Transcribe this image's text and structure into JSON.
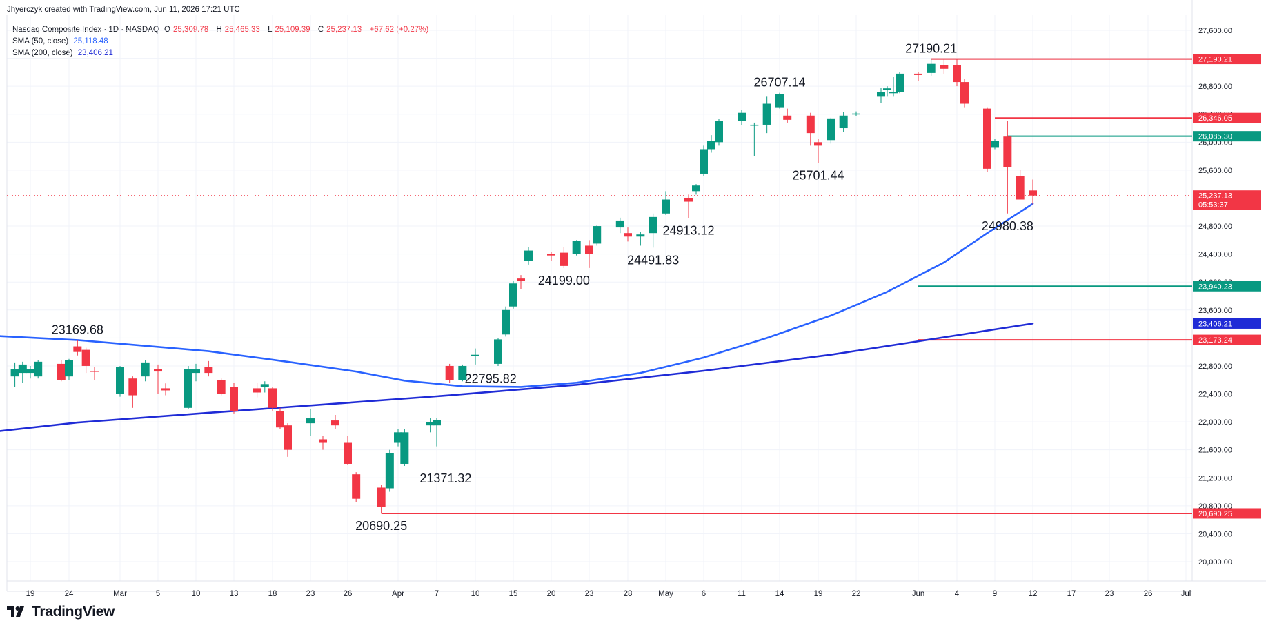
{
  "header": {
    "attribution": "Jhyerczyk created with TradingView.com, Jun 11, 2026 17:21 UTC"
  },
  "legend": {
    "symbol": "Nasdaq Composite Index · 1D · NASDAQ",
    "ohlc": [
      {
        "key": "O",
        "value": "25,309.78"
      },
      {
        "key": "H",
        "value": "25,465.33"
      },
      {
        "key": "L",
        "value": "25,109.39"
      },
      {
        "key": "C",
        "value": "25,237.13"
      }
    ],
    "change": "+67.62 (+0.27%)",
    "sma50_label": "SMA (50, close)",
    "sma50_value": "25,118.48",
    "sma200_label": "SMA (200, close)",
    "sma200_value": "23,406.21"
  },
  "footer": {
    "brand": "TradingView"
  },
  "colors": {
    "up": "#089981",
    "down": "#f23645",
    "sma50": "#2962ff",
    "sma200": "#1f2bd6",
    "resistance": "#f23645",
    "support": "#089981",
    "grid": "#f0f3fa"
  },
  "chart_data": {
    "type": "candlestick",
    "ylim": [
      19800,
      27900
    ],
    "y_ticks": [
      20000,
      20400,
      20800,
      21200,
      21600,
      22000,
      22400,
      22800,
      23200,
      23600,
      24000,
      24400,
      24800,
      25200,
      25600,
      26000,
      26400,
      26800,
      27200,
      27600
    ],
    "y_tick_labels": [
      "20,000.00",
      "20,400.00",
      "20,800.00",
      "21,200.00",
      "21,600.00",
      "22,000.00",
      "22,400.00",
      "22,800.00",
      "23,200.00",
      "23,600.00",
      "24,000.00",
      "24,400.00",
      "24,800.00",
      "25,200.00",
      "25,600.00",
      "26,000.00",
      "26,400.00",
      "26,800.00",
      "27,200.00",
      "27,600.00"
    ],
    "x_ticks": [
      {
        "label": "19",
        "date": "2026-02-19"
      },
      {
        "label": "24",
        "date": "2026-02-24"
      },
      {
        "label": "Mar",
        "date": "2026-03-02"
      },
      {
        "label": "5",
        "date": "2026-03-05"
      },
      {
        "label": "10",
        "date": "2026-03-10"
      },
      {
        "label": "13",
        "date": "2026-03-13"
      },
      {
        "label": "18",
        "date": "2026-03-18"
      },
      {
        "label": "23",
        "date": "2026-03-23"
      },
      {
        "label": "26",
        "date": "2026-03-26"
      },
      {
        "label": "Apr",
        "date": "2026-04-01"
      },
      {
        "label": "7",
        "date": "2026-04-07"
      },
      {
        "label": "10",
        "date": "2026-04-10"
      },
      {
        "label": "15",
        "date": "2026-04-15"
      },
      {
        "label": "20",
        "date": "2026-04-20"
      },
      {
        "label": "23",
        "date": "2026-04-23"
      },
      {
        "label": "28",
        "date": "2026-04-28"
      },
      {
        "label": "May",
        "date": "2026-05-01"
      },
      {
        "label": "6",
        "date": "2026-05-06"
      },
      {
        "label": "11",
        "date": "2026-05-11"
      },
      {
        "label": "14",
        "date": "2026-05-14"
      },
      {
        "label": "19",
        "date": "2026-05-19"
      },
      {
        "label": "22",
        "date": "2026-05-22"
      },
      {
        "label": "Jun",
        "date": "2026-06-01"
      },
      {
        "label": "4",
        "date": "2026-06-04"
      },
      {
        "label": "9",
        "date": "2026-06-09"
      },
      {
        "label": "12",
        "date": "2026-06-12"
      },
      {
        "label": "17",
        "date": "2026-06-17"
      },
      {
        "label": "23",
        "date": "2026-06-23"
      },
      {
        "label": "26",
        "date": "2026-06-26"
      },
      {
        "label": "Jul",
        "date": "2026-07-01"
      }
    ],
    "candles": [
      {
        "d": "2026-02-17",
        "o": 22650,
        "h": 22850,
        "l": 22500,
        "c": 22750
      },
      {
        "d": "2026-02-18",
        "o": 22700,
        "h": 22860,
        "l": 22560,
        "c": 22820
      },
      {
        "d": "2026-02-19",
        "o": 22700,
        "h": 22800,
        "l": 22620,
        "c": 22750
      },
      {
        "d": "2026-02-20",
        "o": 22650,
        "h": 22880,
        "l": 22620,
        "c": 22860
      },
      {
        "d": "2026-02-23",
        "o": 22830,
        "h": 22880,
        "l": 22580,
        "c": 22600
      },
      {
        "d": "2026-02-24",
        "o": 22650,
        "h": 22900,
        "l": 22600,
        "c": 22880
      },
      {
        "d": "2026-02-25",
        "o": 23080,
        "h": 23170,
        "l": 22950,
        "c": 23000
      },
      {
        "d": "2026-02-26",
        "o": 23030,
        "h": 23060,
        "l": 22700,
        "c": 22800
      },
      {
        "d": "2026-02-27",
        "o": 22730,
        "h": 22780,
        "l": 22600,
        "c": 22720
      },
      {
        "d": "2026-03-02",
        "o": 22400,
        "h": 22800,
        "l": 22360,
        "c": 22780
      },
      {
        "d": "2026-03-03",
        "o": 22620,
        "h": 22650,
        "l": 22200,
        "c": 22380
      },
      {
        "d": "2026-03-04",
        "o": 22650,
        "h": 22880,
        "l": 22580,
        "c": 22850
      },
      {
        "d": "2026-03-05",
        "o": 22760,
        "h": 22820,
        "l": 22400,
        "c": 22720
      },
      {
        "d": "2026-03-06",
        "o": 22480,
        "h": 22550,
        "l": 22380,
        "c": 22450
      },
      {
        "d": "2026-03-09",
        "o": 22200,
        "h": 22800,
        "l": 22180,
        "c": 22760
      },
      {
        "d": "2026-03-10",
        "o": 22700,
        "h": 22830,
        "l": 22580,
        "c": 22750
      },
      {
        "d": "2026-03-11",
        "o": 22780,
        "h": 22870,
        "l": 22650,
        "c": 22700
      },
      {
        "d": "2026-03-12",
        "o": 22600,
        "h": 22620,
        "l": 22380,
        "c": 22400
      },
      {
        "d": "2026-03-13",
        "o": 22500,
        "h": 22560,
        "l": 22120,
        "c": 22150
      },
      {
        "d": "2026-03-16",
        "o": 22480,
        "h": 22560,
        "l": 22350,
        "c": 22420
      },
      {
        "d": "2026-03-17",
        "o": 22500,
        "h": 22580,
        "l": 22420,
        "c": 22540
      },
      {
        "d": "2026-03-18",
        "o": 22480,
        "h": 22500,
        "l": 22160,
        "c": 22200
      },
      {
        "d": "2026-03-19",
        "o": 22150,
        "h": 22200,
        "l": 21900,
        "c": 21920
      },
      {
        "d": "2026-03-20",
        "o": 21950,
        "h": 21980,
        "l": 21500,
        "c": 21600
      },
      {
        "d": "2026-03-23",
        "o": 21980,
        "h": 22180,
        "l": 21800,
        "c": 22050
      },
      {
        "d": "2026-03-24",
        "o": 21750,
        "h": 21800,
        "l": 21600,
        "c": 21700
      },
      {
        "d": "2026-03-25",
        "o": 22020,
        "h": 22100,
        "l": 21900,
        "c": 21950
      },
      {
        "d": "2026-03-26",
        "o": 21700,
        "h": 21800,
        "l": 21380,
        "c": 21400
      },
      {
        "d": "2026-03-27",
        "o": 21250,
        "h": 21280,
        "l": 20850,
        "c": 20900
      },
      {
        "d": "2026-03-30",
        "o": 21060,
        "h": 21100,
        "l": 20700,
        "c": 20780
      },
      {
        "d": "2026-03-31",
        "o": 21050,
        "h": 21600,
        "l": 21000,
        "c": 21550
      },
      {
        "d": "2026-04-01",
        "o": 21700,
        "h": 21900,
        "l": 21650,
        "c": 21850
      },
      {
        "d": "2026-04-02",
        "o": 21400,
        "h": 21900,
        "l": 21370,
        "c": 21850
      },
      {
        "d": "2026-04-06",
        "o": 21950,
        "h": 22050,
        "l": 21850,
        "c": 22000
      },
      {
        "d": "2026-04-07",
        "o": 21950,
        "h": 22050,
        "l": 21650,
        "c": 22030
      },
      {
        "d": "2026-04-08",
        "o": 22800,
        "h": 22830,
        "l": 22560,
        "c": 22600
      },
      {
        "d": "2026-04-09",
        "o": 22600,
        "h": 22820,
        "l": 22580,
        "c": 22800
      },
      {
        "d": "2026-04-10",
        "o": 22950,
        "h": 23050,
        "l": 22820,
        "c": 22960
      },
      {
        "d": "2026-04-13",
        "o": 22830,
        "h": 23200,
        "l": 22800,
        "c": 23180
      },
      {
        "d": "2026-04-14",
        "o": 23250,
        "h": 23650,
        "l": 23220,
        "c": 23600
      },
      {
        "d": "2026-04-15",
        "o": 23650,
        "h": 24020,
        "l": 23620,
        "c": 23980
      },
      {
        "d": "2026-04-16",
        "o": 24050,
        "h": 24100,
        "l": 23900,
        "c": 24020
      },
      {
        "d": "2026-04-17",
        "o": 24300,
        "h": 24500,
        "l": 24250,
        "c": 24450
      },
      {
        "d": "2026-04-20",
        "o": 24400,
        "h": 24430,
        "l": 24300,
        "c": 24380
      },
      {
        "d": "2026-04-21",
        "o": 24420,
        "h": 24500,
        "l": 24199,
        "c": 24230
      },
      {
        "d": "2026-04-22",
        "o": 24400,
        "h": 24600,
        "l": 24380,
        "c": 24590
      },
      {
        "d": "2026-04-23",
        "o": 24520,
        "h": 24600,
        "l": 24200,
        "c": 24400
      },
      {
        "d": "2026-04-24",
        "o": 24550,
        "h": 24820,
        "l": 24520,
        "c": 24800
      },
      {
        "d": "2026-04-27",
        "o": 24780,
        "h": 24920,
        "l": 24700,
        "c": 24880
      },
      {
        "d": "2026-04-28",
        "o": 24700,
        "h": 24780,
        "l": 24580,
        "c": 24650
      },
      {
        "d": "2026-04-29",
        "o": 24650,
        "h": 24720,
        "l": 24520,
        "c": 24680
      },
      {
        "d": "2026-04-30",
        "o": 24700,
        "h": 24980,
        "l": 24492,
        "c": 24930
      },
      {
        "d": "2026-05-01",
        "o": 24980,
        "h": 25300,
        "l": 24960,
        "c": 25180
      },
      {
        "d": "2026-05-04",
        "o": 25200,
        "h": 25250,
        "l": 24913,
        "c": 25150
      },
      {
        "d": "2026-05-05",
        "o": 25300,
        "h": 25400,
        "l": 25250,
        "c": 25380
      },
      {
        "d": "2026-05-06",
        "o": 25550,
        "h": 25950,
        "l": 25520,
        "c": 25900
      },
      {
        "d": "2026-05-07",
        "o": 25900,
        "h": 26100,
        "l": 25850,
        "c": 26020
      },
      {
        "d": "2026-05-08",
        "o": 26000,
        "h": 26330,
        "l": 25950,
        "c": 26300
      },
      {
        "d": "2026-05-11",
        "o": 26300,
        "h": 26460,
        "l": 26250,
        "c": 26420
      },
      {
        "d": "2026-05-12",
        "o": 26250,
        "h": 26280,
        "l": 25800,
        "c": 26250
      },
      {
        "d": "2026-05-13",
        "o": 26250,
        "h": 26650,
        "l": 26130,
        "c": 26550
      },
      {
        "d": "2026-05-14",
        "o": 26500,
        "h": 26707,
        "l": 26480,
        "c": 26690
      },
      {
        "d": "2026-05-15",
        "o": 26380,
        "h": 26480,
        "l": 26280,
        "c": 26320
      },
      {
        "d": "2026-05-18",
        "o": 26380,
        "h": 26420,
        "l": 25950,
        "c": 26130
      },
      {
        "d": "2026-05-19",
        "o": 26000,
        "h": 26050,
        "l": 25701,
        "c": 25950
      },
      {
        "d": "2026-05-20",
        "o": 26030,
        "h": 26350,
        "l": 25980,
        "c": 26340
      },
      {
        "d": "2026-05-21",
        "o": 26200,
        "h": 26430,
        "l": 26150,
        "c": 26380
      },
      {
        "d": "2026-05-22",
        "o": 26400,
        "h": 26440,
        "l": 26370,
        "c": 26410
      },
      {
        "d": "2026-05-26",
        "o": 26650,
        "h": 26780,
        "l": 26560,
        "c": 26720
      },
      {
        "d": "2026-05-27",
        "o": 26750,
        "h": 26800,
        "l": 26650,
        "c": 26770
      },
      {
        "d": "2026-05-28",
        "o": 26700,
        "h": 26930,
        "l": 26650,
        "c": 26720
      },
      {
        "d": "2026-05-29",
        "o": 26720,
        "h": 27000,
        "l": 26700,
        "c": 26980
      },
      {
        "d": "2026-06-01",
        "o": 26980,
        "h": 27000,
        "l": 26880,
        "c": 26960
      },
      {
        "d": "2026-06-02",
        "o": 26990,
        "h": 27190,
        "l": 26950,
        "c": 27120
      },
      {
        "d": "2026-06-03",
        "o": 27100,
        "h": 27190,
        "l": 26980,
        "c": 27050
      },
      {
        "d": "2026-06-04",
        "o": 27100,
        "h": 27190,
        "l": 26800,
        "c": 26860
      },
      {
        "d": "2026-06-05",
        "o": 26860,
        "h": 26900,
        "l": 26500,
        "c": 26550
      },
      {
        "d": "2026-06-08",
        "o": 26480,
        "h": 26500,
        "l": 25570,
        "c": 25620
      },
      {
        "d": "2026-06-09",
        "o": 25920,
        "h": 26050,
        "l": 25900,
        "c": 26020
      },
      {
        "d": "2026-06-10",
        "o": 26080,
        "h": 26300,
        "l": 24980,
        "c": 25640
      },
      {
        "d": "2026-06-11",
        "o": 25520,
        "h": 25600,
        "l": 25200,
        "c": 25180
      },
      {
        "d": "2026-06-12",
        "o": 25309.78,
        "h": 25465.33,
        "l": 25109.39,
        "c": 25237.13
      }
    ],
    "sma50": [
      {
        "d": "2026-02-11",
        "v": 23250
      },
      {
        "d": "2026-02-25",
        "v": 23170
      },
      {
        "d": "2026-03-11",
        "v": 23010
      },
      {
        "d": "2026-03-20",
        "v": 22860
      },
      {
        "d": "2026-03-27",
        "v": 22720
      },
      {
        "d": "2026-04-02",
        "v": 22590
      },
      {
        "d": "2026-04-09",
        "v": 22510
      },
      {
        "d": "2026-04-16",
        "v": 22500
      },
      {
        "d": "2026-04-22",
        "v": 22560
      },
      {
        "d": "2026-04-29",
        "v": 22700
      },
      {
        "d": "2026-05-06",
        "v": 22920
      },
      {
        "d": "2026-05-13",
        "v": 23200
      },
      {
        "d": "2026-05-20",
        "v": 23520
      },
      {
        "d": "2026-05-27",
        "v": 23860
      },
      {
        "d": "2026-06-03",
        "v": 24280
      },
      {
        "d": "2026-06-08",
        "v": 24700
      },
      {
        "d": "2026-06-12",
        "v": 25118.48
      }
    ],
    "sma200": [
      {
        "d": "2026-02-11",
        "v": 21820
      },
      {
        "d": "2026-02-25",
        "v": 21990
      },
      {
        "d": "2026-03-11",
        "v": 22130
      },
      {
        "d": "2026-03-25",
        "v": 22260
      },
      {
        "d": "2026-04-08",
        "v": 22380
      },
      {
        "d": "2026-04-22",
        "v": 22530
      },
      {
        "d": "2026-05-06",
        "v": 22730
      },
      {
        "d": "2026-05-20",
        "v": 22960
      },
      {
        "d": "2026-06-03",
        "v": 23210
      },
      {
        "d": "2026-06-12",
        "v": 23406.21
      }
    ],
    "hlines": [
      {
        "value": 27190.21,
        "from": "2026-06-02",
        "color": "#f23645",
        "label": "27,190.21"
      },
      {
        "value": 26346.05,
        "from": "2026-06-09",
        "color": "#f23645",
        "label": "26,346.05"
      },
      {
        "value": 26085.3,
        "from": "2026-06-10",
        "color": "#089981",
        "label": "26,085.30"
      },
      {
        "value": 23940.23,
        "from": "2026-06-01",
        "color": "#089981",
        "label": "23,940.23"
      },
      {
        "value": 23173.24,
        "from": "2026-06-01",
        "color": "#f23645",
        "label": "23,173.24"
      },
      {
        "value": 20690.25,
        "from": "2026-03-30",
        "color": "#f23645",
        "label": "20,690.25"
      }
    ],
    "last_price": {
      "value": 25237.13,
      "label": "25,237.13",
      "countdown": "05:53:37"
    },
    "sma_tags": [
      {
        "value": 25118.48,
        "label": "25,118.48",
        "color": "#2962ff"
      },
      {
        "value": 23406.21,
        "label": "23,406.21",
        "color": "#1f2bd6"
      }
    ],
    "annotations": [
      {
        "text": "27190.21",
        "d": "2026-06-02",
        "v": 27190.21,
        "pos": "above"
      },
      {
        "text": "26707.14",
        "d": "2026-05-14",
        "v": 26707.14,
        "pos": "above"
      },
      {
        "text": "25701.44",
        "d": "2026-05-19",
        "v": 25701.44,
        "pos": "below"
      },
      {
        "text": "24913.12",
        "d": "2026-05-04",
        "v": 24913.12,
        "pos": "below"
      },
      {
        "text": "24491.83",
        "d": "2026-04-30",
        "v": 24491.83,
        "pos": "below"
      },
      {
        "text": "24199.00",
        "d": "2026-04-21",
        "v": 24199.0,
        "pos": "below"
      },
      {
        "text": "24980.38",
        "d": "2026-06-10",
        "v": 24980.38,
        "pos": "below"
      },
      {
        "text": "23169.68",
        "d": "2026-02-25",
        "v": 23169.68,
        "pos": "above"
      },
      {
        "text": "22795.82",
        "d": "2026-04-08",
        "v": 22795.82,
        "pos": "below-right"
      },
      {
        "text": "21371.32",
        "d": "2026-04-02",
        "v": 21371.32,
        "pos": "below-right"
      },
      {
        "text": "20690.25",
        "d": "2026-03-30",
        "v": 20690.25,
        "pos": "below"
      }
    ]
  }
}
